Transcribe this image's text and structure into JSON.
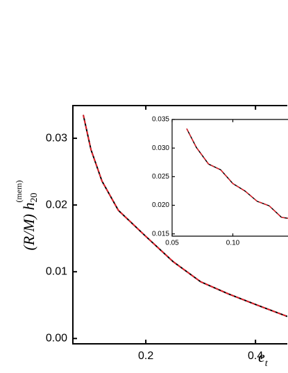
{
  "chart_data": [
    {
      "type": "line",
      "y_label": "(R/M) h",
      "y_label_sub": "20",
      "y_label_sup": "(mem)",
      "x_label": "e",
      "x_label_sub": "t",
      "x": [
        0.086,
        0.1,
        0.12,
        0.15,
        0.2,
        0.25,
        0.3,
        0.35,
        0.4,
        0.458
      ],
      "series": [
        {
          "color": "#000000",
          "dash": false,
          "values": [
            0.0335,
            0.0283,
            0.0236,
            0.0192,
            0.0153,
            0.0115,
            0.0085,
            0.0067,
            0.0051,
            0.0033
          ]
        },
        {
          "color": "#e0202a",
          "dash": true,
          "values": [
            0.0335,
            0.0283,
            0.0236,
            0.0192,
            0.0153,
            0.0115,
            0.0085,
            0.0067,
            0.0051,
            0.0033
          ]
        }
      ],
      "xlim": [
        0.067,
        0.458
      ],
      "xticks": [
        0.2,
        0.4
      ],
      "ylim": [
        -0.0008,
        0.0349
      ],
      "yticks": [
        {
          "value": 0,
          "label": "0.00"
        },
        0.01,
        0.02,
        0.03
      ]
    },
    {
      "type": "line",
      "x": [
        0.062,
        0.07,
        0.08,
        0.09,
        0.1,
        0.11,
        0.12,
        0.13,
        0.14,
        0.146
      ],
      "series": [
        {
          "color": "#000000",
          "dash": false,
          "values": [
            0.0334,
            0.0301,
            0.0272,
            0.0262,
            0.0238,
            0.0225,
            0.0207,
            0.0199,
            0.0179,
            0.0177
          ]
        },
        {
          "color": "#e0202a",
          "dash": true,
          "values": [
            0.0334,
            0.0301,
            0.0272,
            0.0262,
            0.0238,
            0.0225,
            0.0207,
            0.0199,
            0.0179,
            0.0177
          ]
        }
      ],
      "xlim": [
        0.05,
        0.146
      ],
      "xticks": [
        0.05,
        {
          "value": 0.1,
          "label": "0.10"
        }
      ],
      "ylim": [
        0.0146,
        0.035
      ],
      "yticks": [
        0.015,
        {
          "value": 0.02,
          "label": "0.020"
        },
        0.025,
        {
          "value": 0.03,
          "label": "0.030"
        },
        0.035
      ]
    }
  ]
}
